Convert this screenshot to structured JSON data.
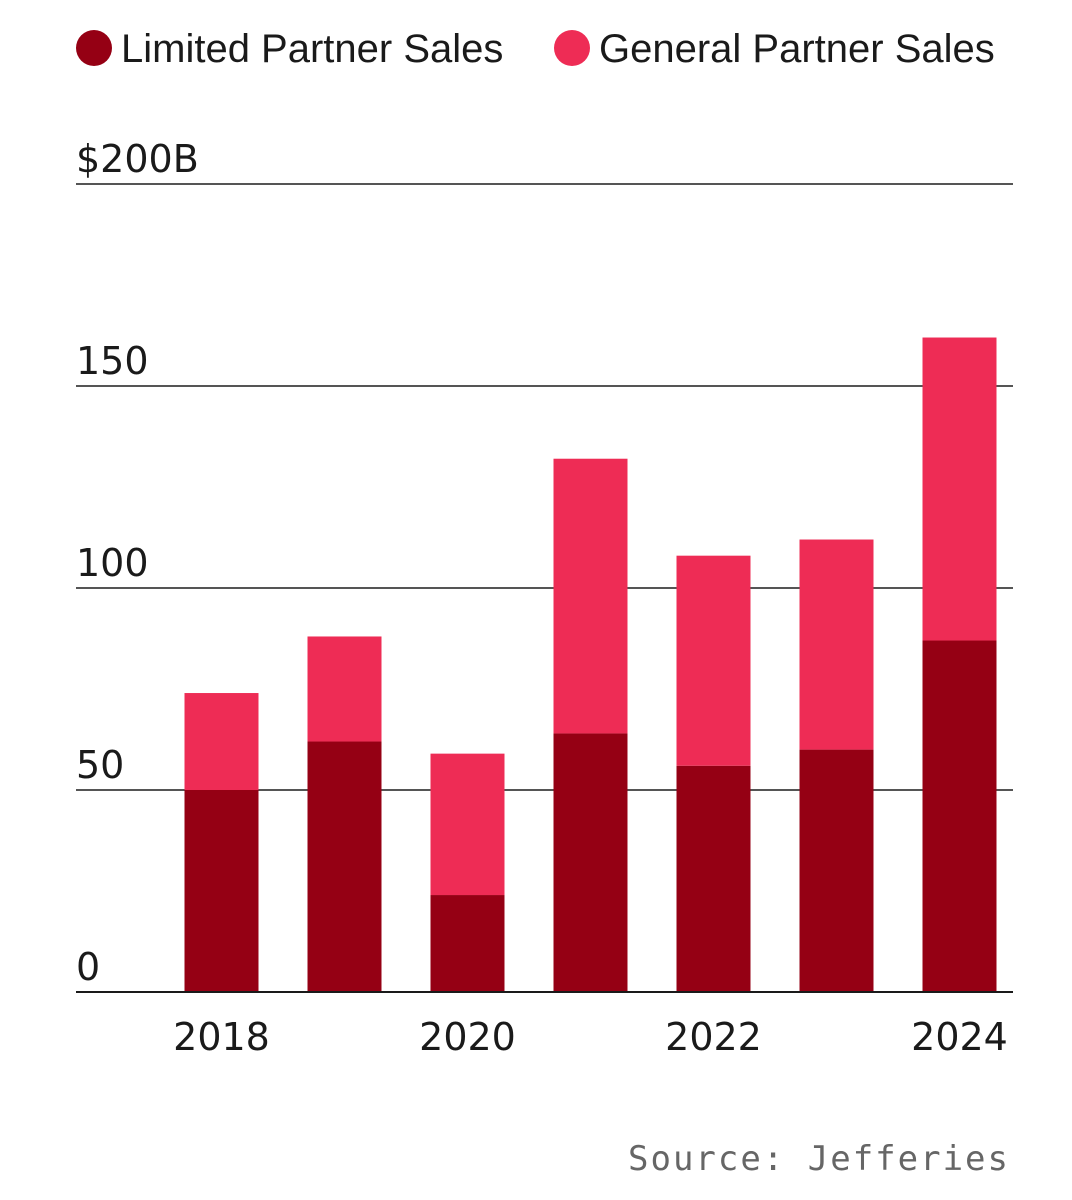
{
  "chart_data": {
    "type": "bar",
    "stacked": true,
    "title": "",
    "xlabel": "",
    "ylabel": "",
    "categories": [
      "2018",
      "2019",
      "2020",
      "2021",
      "2022",
      "2023",
      "2024"
    ],
    "x_tick_labels": [
      "2018",
      "",
      "2020",
      "",
      "2022",
      "",
      "2024"
    ],
    "series": [
      {
        "name": "Limited Partner Sales",
        "color": "#950014",
        "values": [
          50,
          62,
          24,
          64,
          56,
          60,
          87
        ]
      },
      {
        "name": "General Partner Sales",
        "color": "#ee2c55",
        "values": [
          24,
          26,
          35,
          68,
          52,
          52,
          75
        ]
      }
    ],
    "y_ticks": [
      0,
      50,
      100,
      150,
      200
    ],
    "y_tick_labels": [
      "0",
      "50",
      "100",
      "150",
      "$200B"
    ],
    "ylim": [
      0,
      200
    ],
    "grid": true,
    "legend_position": "top-left"
  },
  "source": "Source: Jefferies"
}
